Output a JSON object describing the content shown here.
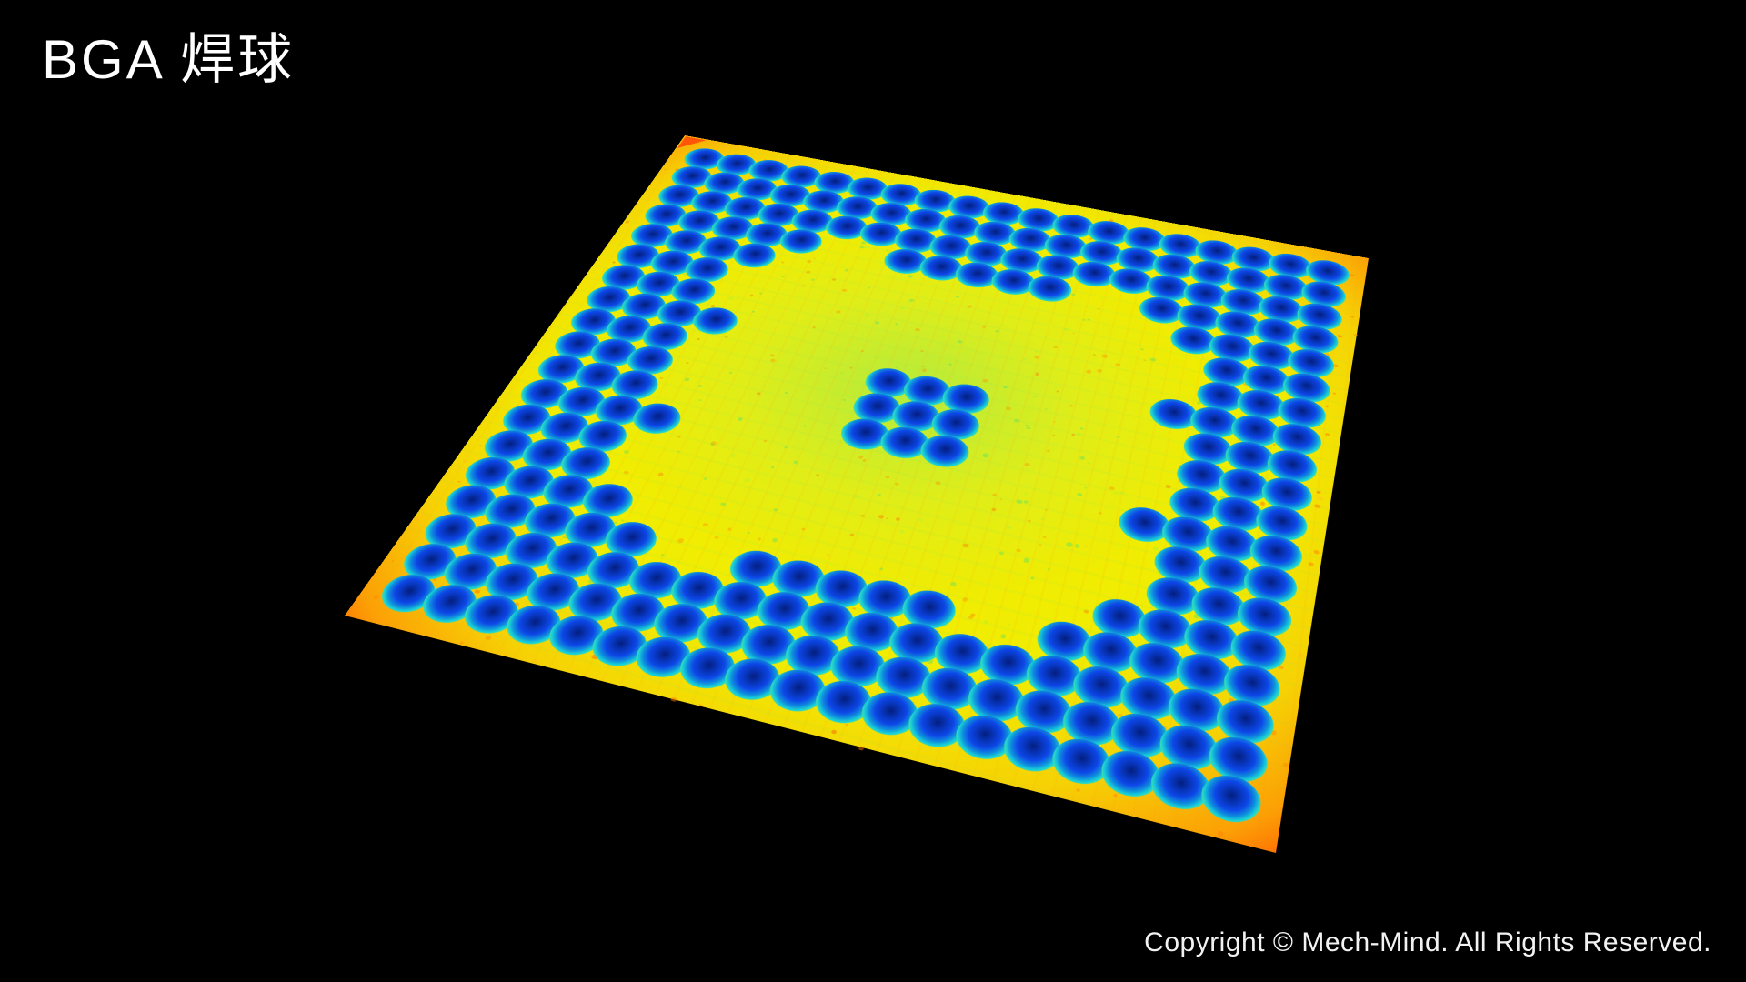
{
  "page": {
    "background": "#000000",
    "text_color": "#ffffff"
  },
  "header": {
    "title": "BGA 焊球"
  },
  "footer": {
    "copyright": "Copyright © Mech-Mind. All Rights Reserved."
  },
  "depth_map": {
    "label": "BGA solder-ball 3D height map (false color)",
    "palette": {
      "surface_yellow": "#f0ec02",
      "surface_edge_orange": "#ff9c0e",
      "surface_center_green": "#8ceb74",
      "ball_top_dark_blue": "#041e7e",
      "ball_core_blue": "#0d47e8",
      "ball_ring_cyan": "#17cdd8",
      "ball_skirt_green": "#52e39a",
      "fiducial_orange_red": "#ff5506"
    },
    "ball_grid": {
      "rows": 19,
      "cols": 19,
      "pattern": [
        "1111111111111111111",
        "1111111111111111111",
        "1111111111111111111",
        "1111100111110011111",
        "1111000000000001111",
        "1110000000000000111",
        "1110000000000000111",
        "1111000000000001111",
        "1110000011100000111",
        "1110000011100000111",
        "1110000011100000111",
        "1111000000000001111",
        "1110000000000000111",
        "1110000000000000111",
        "1111000000000001111",
        "1111100111110011111",
        "1111111111111111111",
        "1111111111111111111",
        "1111111111111111111"
      ]
    }
  }
}
